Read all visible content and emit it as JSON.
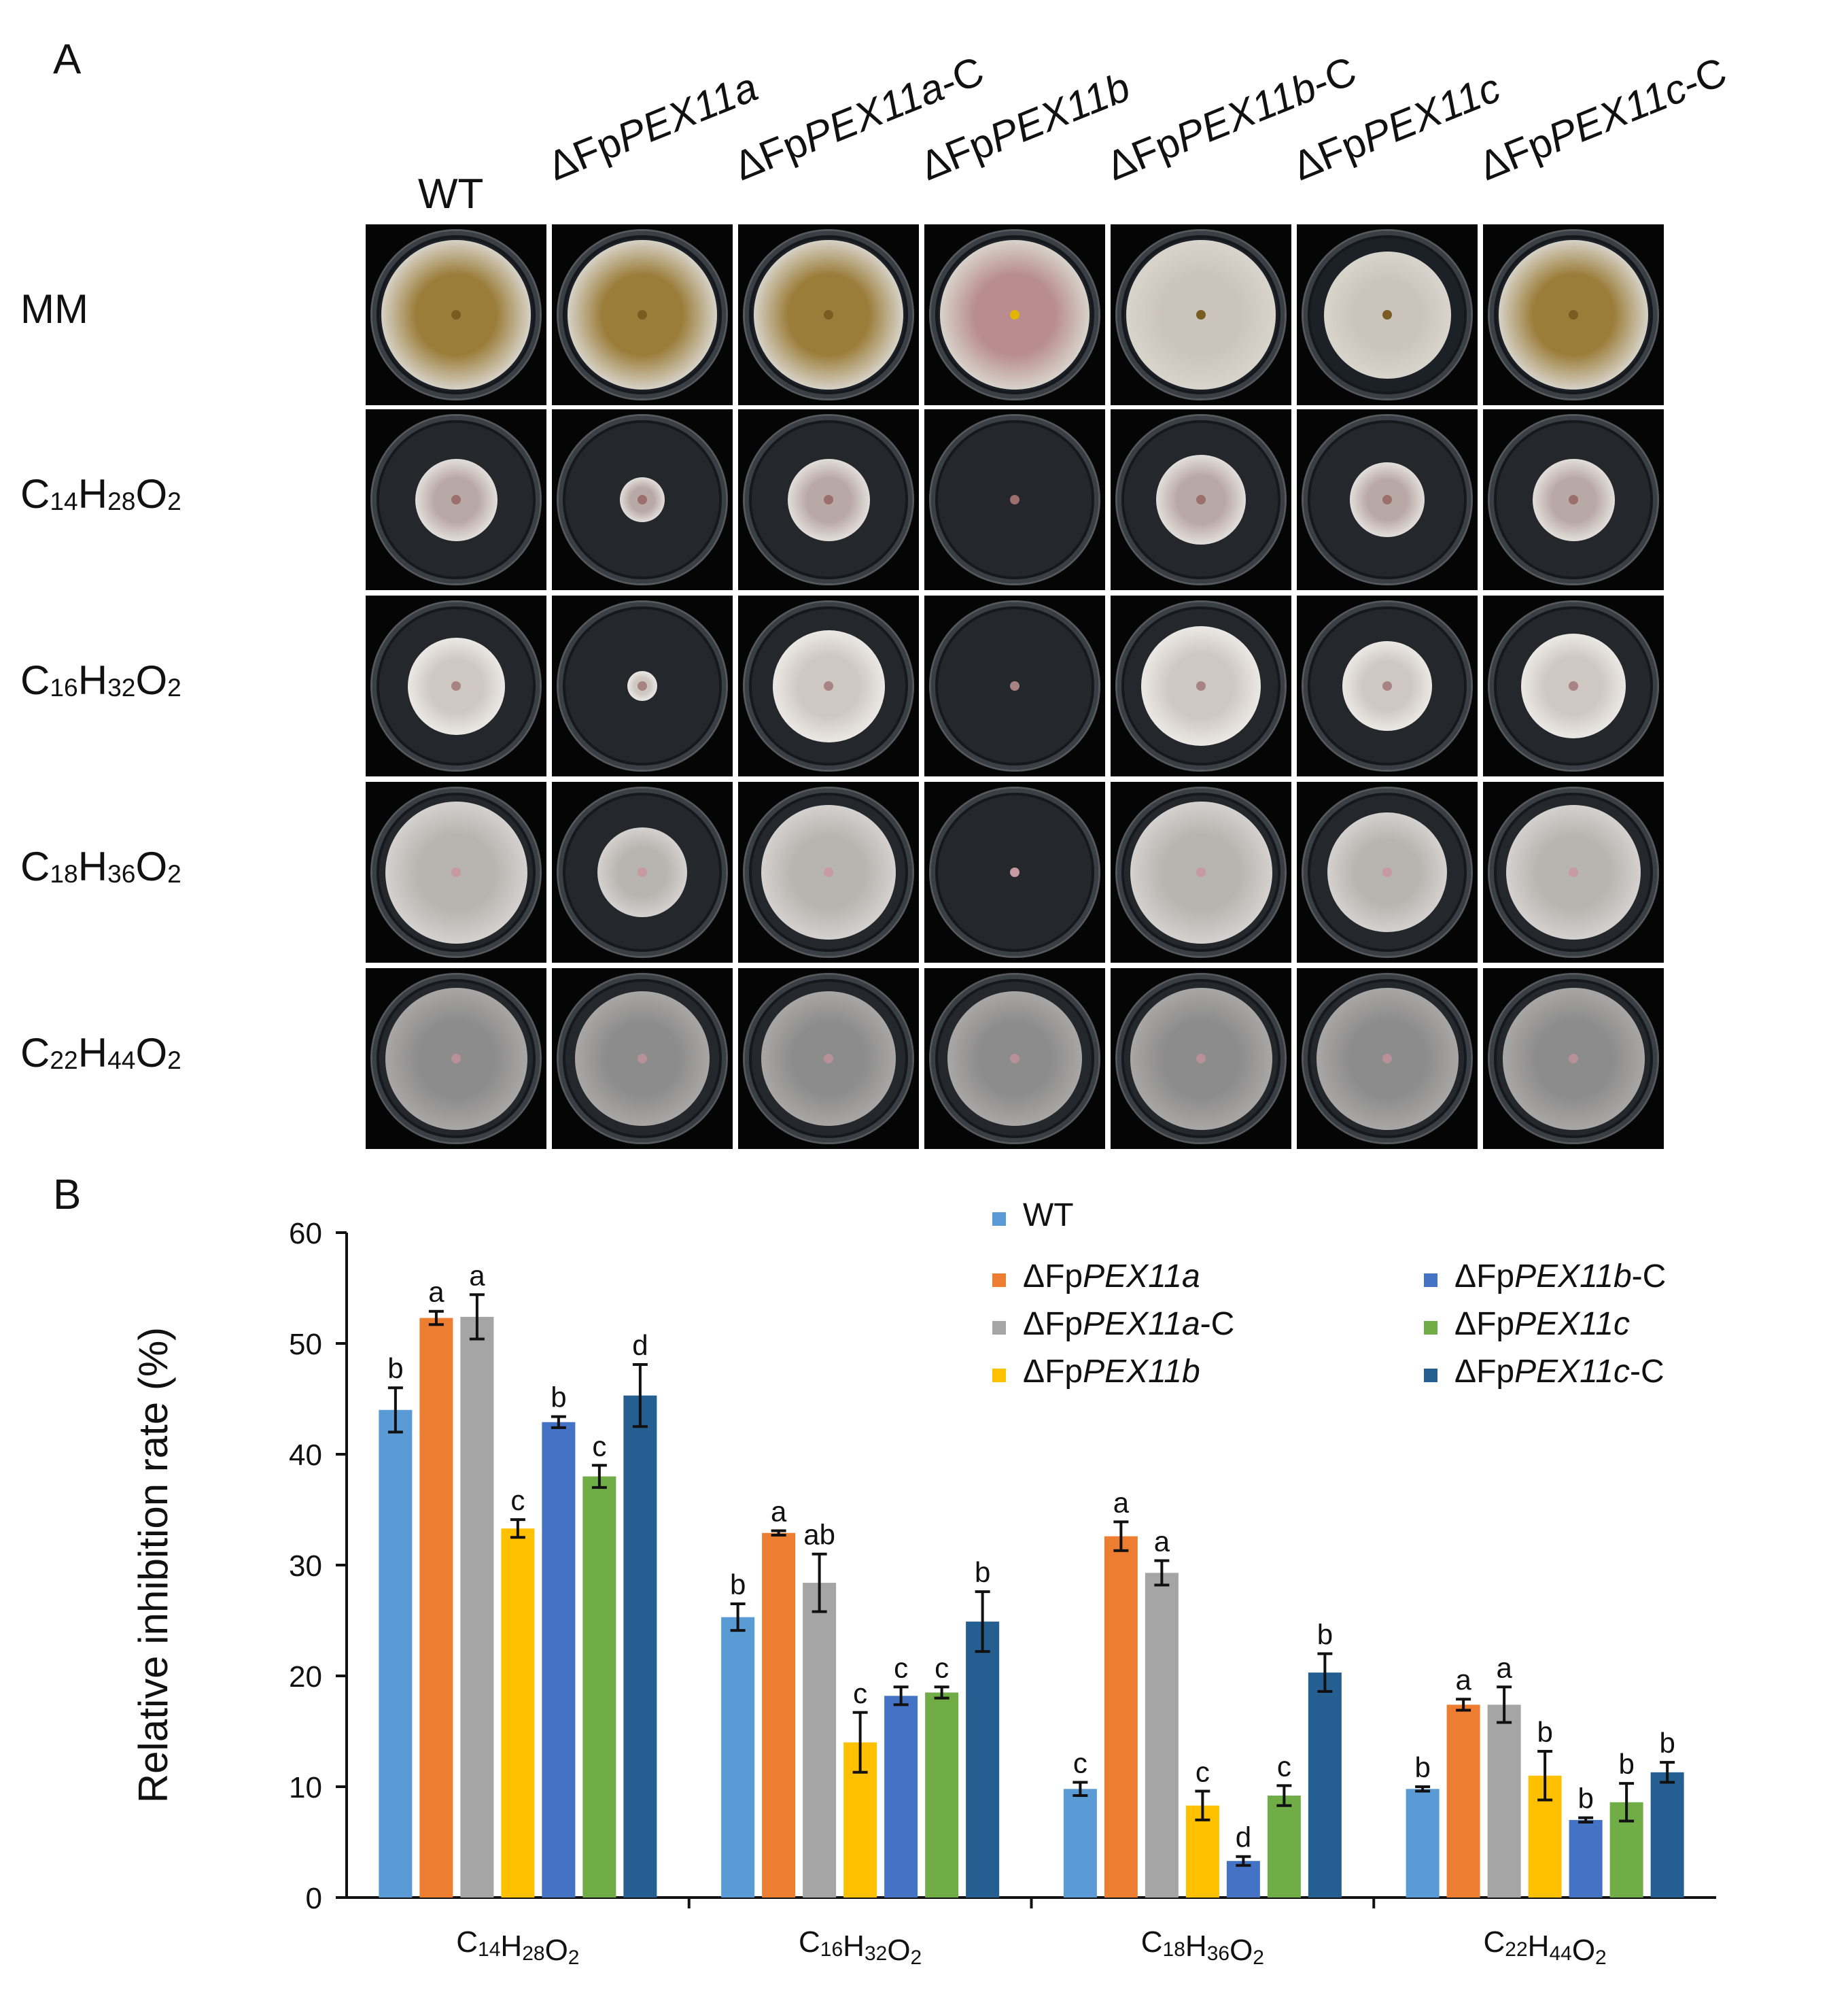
{
  "panel_a": {
    "letter": "A",
    "columns": [
      {
        "prefix": "WT",
        "gene": "",
        "suffix": ""
      },
      {
        "prefix": "ΔFp",
        "gene": "PEX11a",
        "suffix": ""
      },
      {
        "prefix": "ΔFp",
        "gene": "PEX11a",
        "suffix": "-C"
      },
      {
        "prefix": "ΔFp",
        "gene": "PEX11b",
        "suffix": ""
      },
      {
        "prefix": "ΔFp",
        "gene": "PEX11b",
        "suffix": "-C"
      },
      {
        "prefix": "ΔFp",
        "gene": "PEX11c",
        "suffix": ""
      },
      {
        "prefix": "ΔFp",
        "gene": "PEX11c",
        "suffix": "-C"
      }
    ],
    "rows": [
      {
        "label": "MM",
        "formula": null
      },
      {
        "label": "C14H28O2",
        "formula": [
          [
            "C",
            "14"
          ],
          [
            "H",
            "28"
          ],
          [
            "O",
            "2"
          ]
        ]
      },
      {
        "label": "C16H32O2",
        "formula": [
          [
            "C",
            "16"
          ],
          [
            "H",
            "32"
          ],
          [
            "O",
            "2"
          ]
        ]
      },
      {
        "label": "C18H36O2",
        "formula": [
          [
            "C",
            "18"
          ],
          [
            "H",
            "36"
          ],
          [
            "O",
            "2"
          ]
        ]
      },
      {
        "label": "C22H44O2",
        "formula": [
          [
            "C",
            "22"
          ],
          [
            "H",
            "44"
          ],
          [
            "O",
            "2"
          ]
        ]
      }
    ],
    "colony_sizes": [
      [
        1.0,
        1.0,
        1.0,
        1.0,
        1.0,
        0.85,
        1.0
      ],
      [
        0.55,
        0.3,
        0.55,
        0.05,
        0.6,
        0.5,
        0.55
      ],
      [
        0.65,
        0.2,
        0.75,
        0.05,
        0.8,
        0.6,
        0.7
      ],
      [
        0.95,
        0.6,
        0.9,
        0.05,
        0.95,
        0.8,
        0.9
      ],
      [
        0.95,
        0.9,
        0.9,
        0.9,
        0.95,
        0.95,
        0.95
      ]
    ]
  },
  "chart_data": {
    "type": "bar",
    "panel_letter": "B",
    "ylabel": "Relative inhibition rate (%)",
    "xlabel": "",
    "ylim": [
      0,
      60
    ],
    "yticks": [
      0,
      10,
      20,
      30,
      40,
      50,
      60
    ],
    "grid": false,
    "legend_position": "top-right",
    "categories": [
      [
        [
          "C",
          "14"
        ],
        [
          "H",
          "28"
        ],
        [
          "O",
          "2"
        ]
      ],
      [
        [
          "C",
          "16"
        ],
        [
          "H",
          "32"
        ],
        [
          "O",
          "2"
        ]
      ],
      [
        [
          "C",
          "18"
        ],
        [
          "H",
          "36"
        ],
        [
          "O",
          "2"
        ]
      ],
      [
        [
          "C",
          "22"
        ],
        [
          "H",
          "44"
        ],
        [
          "O",
          "2"
        ]
      ]
    ],
    "series": [
      {
        "name": {
          "prefix": "WT",
          "gene": "",
          "suffix": ""
        },
        "color": "#5b9bd5",
        "values": [
          44.0,
          25.3,
          9.8,
          9.8
        ],
        "errors": [
          2.0,
          1.2,
          0.6,
          0.2
        ],
        "letters": [
          "b",
          "b",
          "c",
          "b"
        ]
      },
      {
        "name": {
          "prefix": "ΔFp",
          "gene": "PEX11a",
          "suffix": ""
        },
        "color": "#ed7d31",
        "values": [
          52.3,
          32.9,
          32.6,
          17.4
        ],
        "errors": [
          0.6,
          0.2,
          1.3,
          0.5
        ],
        "letters": [
          "a",
          "a",
          "a",
          "a"
        ]
      },
      {
        "name": {
          "prefix": "ΔFp",
          "gene": "PEX11a",
          "suffix": "-C"
        },
        "color": "#a5a5a5",
        "values": [
          52.4,
          28.4,
          29.3,
          17.4
        ],
        "errors": [
          2.0,
          2.6,
          1.1,
          1.6
        ],
        "letters": [
          "a",
          "ab",
          "a",
          "a"
        ]
      },
      {
        "name": {
          "prefix": "ΔFp",
          "gene": "PEX11b",
          "suffix": ""
        },
        "color": "#ffc000",
        "values": [
          33.3,
          14.0,
          8.3,
          11.0
        ],
        "errors": [
          0.8,
          2.7,
          1.3,
          2.2
        ],
        "letters": [
          "c",
          "c",
          "c",
          "b"
        ]
      },
      {
        "name": {
          "prefix": "ΔFp",
          "gene": "PEX11b",
          "suffix": "-C"
        },
        "color": "#4472c4",
        "values": [
          42.9,
          18.2,
          3.3,
          7.0
        ],
        "errors": [
          0.5,
          0.8,
          0.4,
          0.2
        ],
        "letters": [
          "b",
          "c",
          "d",
          "b"
        ]
      },
      {
        "name": {
          "prefix": "ΔFp",
          "gene": "PEX11c",
          "suffix": ""
        },
        "color": "#70ad47",
        "values": [
          38.0,
          18.5,
          9.2,
          8.6
        ],
        "errors": [
          1.0,
          0.5,
          0.9,
          1.7
        ],
        "letters": [
          "c",
          "c",
          "c",
          "b"
        ]
      },
      {
        "name": {
          "prefix": "ΔFp",
          "gene": "PEX11c",
          "suffix": "-C"
        },
        "color": "#255e91",
        "values": [
          45.3,
          24.9,
          20.3,
          11.3
        ],
        "errors": [
          2.8,
          2.7,
          1.7,
          0.9
        ],
        "letters": [
          "d",
          "b",
          "b",
          "b"
        ]
      }
    ]
  }
}
